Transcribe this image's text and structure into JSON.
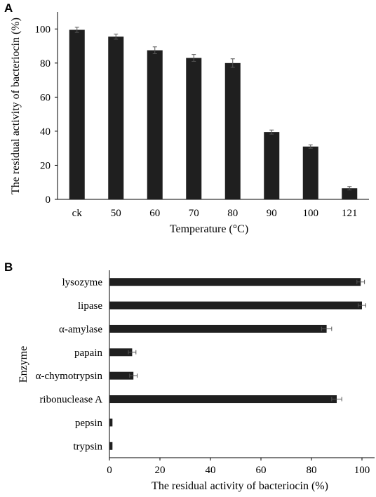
{
  "chart_data": [
    {
      "panel": "A",
      "type": "bar",
      "orientation": "vertical",
      "categories": [
        "ck",
        "50",
        "60",
        "70",
        "80",
        "90",
        "100",
        "121"
      ],
      "values": [
        99.5,
        95.5,
        87.5,
        83,
        80,
        39.5,
        31,
        6.5
      ],
      "errors": [
        1.5,
        1.5,
        2,
        2,
        2.5,
        1.2,
        1,
        1
      ],
      "xlabel": "Temperature (°C)",
      "ylabel": "The residual activity of bacteriocin (%)",
      "ylim": [
        0,
        110
      ],
      "yticks": [
        0,
        20,
        40,
        60,
        80,
        100
      ],
      "grid": false,
      "bar_color": "#1f1f1f"
    },
    {
      "panel": "B",
      "type": "bar",
      "orientation": "horizontal",
      "categories": [
        "lysozyme",
        "lipase",
        "α-amylase",
        "papain",
        "α-chymotrypsin",
        "ribonuclease A",
        "pepsin",
        "trypsin"
      ],
      "values": [
        99.5,
        100,
        86,
        9,
        9.5,
        90,
        1.2,
        1.2
      ],
      "errors": [
        1.5,
        1.5,
        2,
        1.5,
        1.5,
        2,
        0,
        0
      ],
      "xlabel": "The residual activity of bacteriocin (%)",
      "ylabel": "Enzyme",
      "xlim": [
        0,
        105
      ],
      "xticks": [
        0,
        20,
        40,
        60,
        80,
        100
      ],
      "grid": false,
      "bar_color": "#1f1f1f"
    }
  ]
}
